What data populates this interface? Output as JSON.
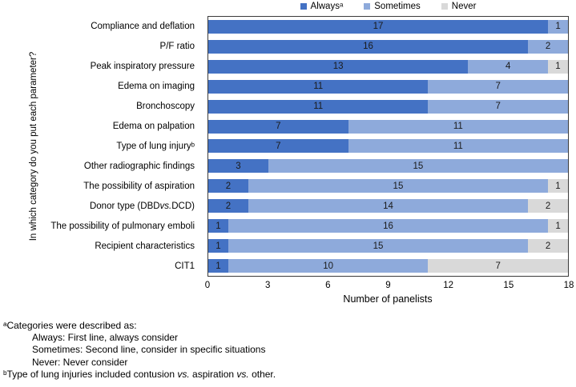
{
  "chart_data": {
    "type": "bar",
    "orientation": "horizontal",
    "stacked": true,
    "title": "",
    "xlabel": "Number of panelists",
    "ylabel": "In which category do you put each parameter?",
    "xlim": [
      0,
      18
    ],
    "x_ticks": [
      0,
      3,
      6,
      9,
      12,
      15,
      18
    ],
    "grid": false,
    "legend_position": "top",
    "categories": [
      "Compliance and deflation",
      "P/F ratio",
      "Peak inspiratory pressure",
      "Edema on imaging",
      "Bronchoscopy",
      "Edema on palpation",
      "Type of lung injuryᵇ",
      "Other radiographic findings",
      "The possibility of aspiration",
      "Donor type (DBD vs. DCD)",
      "The possibility of pulmonary emboli",
      "Recipient characteristics",
      "CIT1"
    ],
    "series": [
      {
        "name": "Alwaysᵃ",
        "key": "always",
        "color": "#4472C4",
        "values": [
          17,
          16,
          13,
          11,
          11,
          7,
          7,
          3,
          2,
          2,
          1,
          1,
          1
        ]
      },
      {
        "name": "Sometimes",
        "key": "sometimes",
        "color": "#8EAADB",
        "values": [
          1,
          2,
          4,
          7,
          7,
          11,
          11,
          15,
          15,
          14,
          16,
          15,
          10
        ]
      },
      {
        "name": "Never",
        "key": "never",
        "color": "#D9D9D9",
        "values": [
          0,
          0,
          1,
          0,
          0,
          0,
          0,
          0,
          1,
          2,
          1,
          2,
          7
        ]
      }
    ]
  },
  "footnotes": [
    {
      "text": "ᵃCategories were described as:",
      "indent": false
    },
    {
      "text": "Always: First line, always consider",
      "indent": true
    },
    {
      "text": "Sometimes: Second line, consider in specific situations",
      "indent": true
    },
    {
      "text": "Never: Never consider",
      "indent": true
    },
    {
      "text": "ᵇType of lung injuries included contusion vs. aspiration vs. other.",
      "indent": false
    }
  ]
}
